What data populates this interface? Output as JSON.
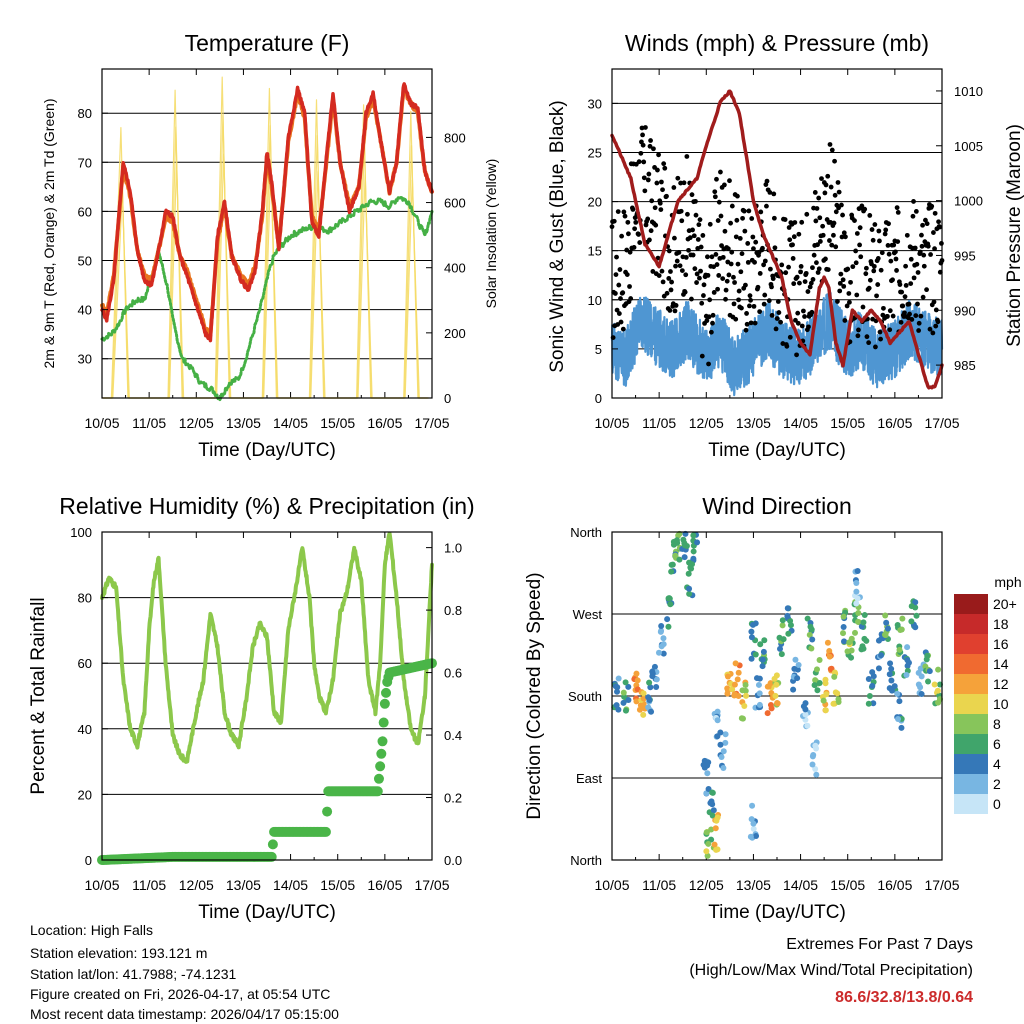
{
  "figure": {
    "location": "Location: High Falls",
    "elevation": "Station elevation: 193.121 m",
    "latlon": "Station lat/lon: 41.7988; -74.1231",
    "created": "Figure created on Fri, 2026-04-17, at 05:54 UTC",
    "recent": "Most recent data timestamp: 2026/04/17 05:15:00",
    "extremes_title": "Extremes For Past 7 Days",
    "extremes_sub": "(High/Low/Max Wind/Total Precipitation)",
    "extremes_values": "86.6/32.8/13.8/0.64"
  },
  "colors": {
    "temp2m": "#d42a20",
    "temp9m": "#e8731e",
    "dewpoint": "#45b045",
    "solar": "#f5dc68",
    "gust": "#000000",
    "wind": "#4f96d2",
    "pressure": "#a01c1c",
    "rh": "#8cc84b",
    "precip": "#4ab548"
  },
  "chart_data": [
    {
      "id": "temperature",
      "type": "line",
      "title": "Temperature (F)",
      "xlabel": "Time (Day/UTC)",
      "ylabel": "2m & 9m T (Red, Orange) & 2m Td (Green)",
      "ylabel_right": "Solar Insolation (Yellow)",
      "xlim": [
        0,
        7
      ],
      "ylim": [
        22,
        89
      ],
      "ylim_right": [
        0,
        1010
      ],
      "x_ticks": [
        "10/05",
        "11/05",
        "12/05",
        "13/05",
        "14/05",
        "15/05",
        "16/05",
        "17/05"
      ],
      "y_ticks": [
        30,
        40,
        50,
        60,
        70,
        80
      ],
      "y_ticks_right": [
        0,
        200,
        400,
        600,
        800
      ],
      "gridlines": [
        30,
        40,
        50,
        60,
        70,
        80
      ],
      "series": [
        {
          "name": "2m T",
          "x": [
            0,
            0.1,
            0.25,
            0.45,
            0.6,
            0.75,
            0.9,
            1.05,
            1.2,
            1.35,
            1.5,
            1.65,
            1.8,
            2.0,
            2.2,
            2.3,
            2.45,
            2.6,
            2.75,
            2.95,
            3.1,
            3.25,
            3.4,
            3.5,
            3.6,
            3.75,
            3.95,
            4.15,
            4.3,
            4.45,
            4.6,
            4.75,
            4.9,
            5.05,
            5.25,
            5.45,
            5.6,
            5.75,
            5.9,
            6.1,
            6.25,
            6.4,
            6.55,
            6.7,
            6.85,
            7.0
          ],
          "y": [
            40,
            38,
            46,
            70,
            64,
            52,
            46,
            45,
            52,
            60,
            59,
            51,
            47,
            41,
            35,
            34,
            55,
            62,
            51,
            46,
            44,
            48,
            60,
            72,
            66,
            52,
            75,
            85,
            80,
            58,
            55,
            70,
            84,
            70,
            60,
            65,
            80,
            84,
            75,
            64,
            70,
            86,
            82,
            81,
            68,
            64
          ]
        },
        {
          "name": "9m T",
          "x": [
            0,
            0.1,
            0.25,
            0.45,
            0.6,
            0.75,
            0.9,
            1.05,
            1.2,
            1.35,
            1.5,
            1.65,
            1.8,
            2.0,
            2.2,
            2.3,
            2.45,
            2.6,
            2.75,
            2.95,
            3.1,
            3.25,
            3.4,
            3.5,
            3.6,
            3.75,
            3.95,
            4.15,
            4.3,
            4.45,
            4.6,
            4.75,
            4.9,
            5.05,
            5.25,
            5.45,
            5.6,
            5.75,
            5.9,
            6.1,
            6.25,
            6.4,
            6.55,
            6.7,
            6.85,
            7.0
          ],
          "y": [
            41,
            39,
            47,
            69,
            63,
            52,
            47,
            46,
            52,
            59,
            58,
            51,
            48,
            42,
            36,
            35,
            54,
            61,
            51,
            47,
            45,
            49,
            59,
            71,
            65,
            53,
            74,
            84,
            79,
            59,
            56,
            69,
            83,
            70,
            61,
            65,
            79,
            83,
            75,
            64,
            70,
            85,
            82,
            80,
            68,
            64
          ]
        },
        {
          "name": "2m Td",
          "x": [
            0,
            0.2,
            0.35,
            0.5,
            0.75,
            0.9,
            1.0,
            1.2,
            1.4,
            1.5,
            1.7,
            1.9,
            2.1,
            2.3,
            2.5,
            2.7,
            2.9,
            3.05,
            3.2,
            3.35,
            3.45,
            3.55,
            3.65,
            3.8,
            4.0,
            4.2,
            4.5,
            4.8,
            5.1,
            5.4,
            5.7,
            5.9,
            6.1,
            6.3,
            6.5,
            6.7,
            6.85,
            7.0
          ],
          "y": [
            34,
            35,
            37,
            40,
            42,
            42,
            45,
            52,
            44,
            38,
            30,
            28,
            25,
            24,
            22,
            25,
            26,
            30,
            35,
            40,
            44,
            48,
            51,
            53,
            55,
            56,
            57,
            56,
            58,
            60,
            62,
            62,
            61,
            63,
            62,
            58,
            55,
            60
          ]
        },
        {
          "name": "Solar Insolation",
          "axis": "right",
          "x": [
            0.0,
            0.2,
            0.4,
            0.55,
            0.7,
            0.9,
            1.2,
            1.4,
            1.55,
            1.7,
            1.9,
            2.2,
            2.4,
            2.55,
            2.7,
            2.9,
            3.2,
            3.4,
            3.55,
            3.7,
            3.9,
            4.2,
            4.4,
            4.55,
            4.7,
            4.9,
            5.2,
            5.4,
            5.55,
            5.7,
            5.9,
            6.2,
            6.4,
            6.55,
            6.7,
            6.9
          ],
          "y": [
            0,
            0,
            830,
            0,
            0,
            0,
            0,
            0,
            945,
            0,
            0,
            0,
            0,
            985,
            0,
            0,
            0,
            0,
            950,
            0,
            0,
            0,
            0,
            915,
            0,
            0,
            0,
            0,
            900,
            0,
            0,
            0,
            0,
            880,
            0,
            0
          ]
        }
      ]
    },
    {
      "id": "winds",
      "type": "line",
      "title": "Winds (mph) & Pressure (mb)",
      "xlabel": "Time (Day/UTC)",
      "ylabel": "Sonic Wind & Gust (Blue, Black)",
      "ylabel_right": "Station Pressure (Maroon)",
      "xlim": [
        0,
        7
      ],
      "ylim": [
        0,
        33.5
      ],
      "ylim_right": [
        982,
        1012
      ],
      "x_ticks": [
        "10/05",
        "11/05",
        "12/05",
        "13/05",
        "14/05",
        "15/05",
        "16/05",
        "17/05"
      ],
      "y_ticks": [
        0,
        5,
        10,
        15,
        20,
        25,
        30
      ],
      "y_ticks_right": [
        985,
        990,
        995,
        1000,
        1005,
        1010
      ],
      "gridlines": [
        5,
        10,
        15,
        20,
        25,
        30
      ],
      "series": [
        {
          "name": "Sonic Wind",
          "x": [
            0,
            0.3,
            0.6,
            1.0,
            1.3,
            1.6,
            2.0,
            2.3,
            2.6,
            3.0,
            3.3,
            3.6,
            4.0,
            4.3,
            4.6,
            5.0,
            5.3,
            5.6,
            6.0,
            6.3,
            6.6,
            7.0
          ],
          "y": [
            5,
            4,
            8,
            6,
            5,
            7,
            4,
            6,
            3,
            5,
            7,
            5,
            4,
            6,
            8,
            5,
            6,
            4,
            5,
            7,
            6,
            5
          ]
        },
        {
          "name": "Gust",
          "x": [
            0,
            0.3,
            0.6,
            1.0,
            1.3,
            1.6,
            2.0,
            2.3,
            2.6,
            3.0,
            3.3,
            3.6,
            4.0,
            4.3,
            4.6,
            5.0,
            5.3,
            5.6,
            6.0,
            6.3,
            6.6,
            7.0
          ],
          "y": [
            12,
            14,
            22,
            18,
            15,
            18,
            9,
            18,
            14,
            13,
            17,
            12,
            11,
            16,
            20,
            12,
            13,
            11,
            12,
            15,
            13,
            14
          ]
        },
        {
          "name": "Station Pressure",
          "axis": "right",
          "x": [
            0,
            0.2,
            0.4,
            0.55,
            0.7,
            0.85,
            1.0,
            1.2,
            1.4,
            1.6,
            1.8,
            2.0,
            2.15,
            2.3,
            2.5,
            2.7,
            2.85,
            3.0,
            3.2,
            3.4,
            3.6,
            3.8,
            4.0,
            4.2,
            4.4,
            4.5,
            4.6,
            4.75,
            4.9,
            5.1,
            5.3,
            5.5,
            5.7,
            5.9,
            6.1,
            6.3,
            6.5,
            6.7,
            6.85,
            7.0
          ],
          "y": [
            1006,
            1004,
            1002,
            999,
            996,
            995,
            994,
            997,
            1000,
            1001,
            1002,
            1005,
            1007,
            1009,
            1010,
            1008,
            1004,
            1000,
            997,
            995,
            993,
            989,
            987,
            986,
            992,
            993,
            992,
            987,
            985,
            990,
            989,
            990,
            989,
            987,
            988,
            989,
            986,
            983,
            983,
            985
          ]
        }
      ]
    },
    {
      "id": "humidity",
      "type": "line",
      "title": "Relative Humidity (%) & Precipitation (in)",
      "xlabel": "Time (Day/UTC)",
      "ylabel": "Percent & Total Rainfall",
      "xlim": [
        0,
        7
      ],
      "ylim": [
        0,
        100
      ],
      "ylim_right": [
        0,
        1.05
      ],
      "x_ticks": [
        "10/05",
        "11/05",
        "12/05",
        "13/05",
        "14/05",
        "15/05",
        "16/05",
        "17/05"
      ],
      "y_ticks": [
        0,
        20,
        40,
        60,
        80,
        100
      ],
      "y_ticks_right": [
        "0.0",
        "0.2",
        "0.4",
        "0.6",
        "0.8",
        "1.0"
      ],
      "gridlines": [
        20,
        40,
        60,
        80
      ],
      "series": [
        {
          "name": "Relative Humidity",
          "x": [
            0,
            0.15,
            0.3,
            0.45,
            0.6,
            0.75,
            0.9,
            1.0,
            1.1,
            1.2,
            1.35,
            1.5,
            1.65,
            1.8,
            2.0,
            2.15,
            2.3,
            2.45,
            2.6,
            2.75,
            2.9,
            3.05,
            3.2,
            3.35,
            3.5,
            3.65,
            3.8,
            3.95,
            4.1,
            4.25,
            4.4,
            4.5,
            4.6,
            4.75,
            4.9,
            5.05,
            5.2,
            5.35,
            5.5,
            5.65,
            5.8,
            5.9,
            6.0,
            6.1,
            6.25,
            6.4,
            6.55,
            6.7,
            6.85,
            7.0
          ],
          "y": [
            80,
            86,
            83,
            55,
            40,
            35,
            45,
            70,
            85,
            92,
            60,
            38,
            32,
            30,
            45,
            55,
            75,
            65,
            45,
            38,
            35,
            48,
            65,
            72,
            68,
            45,
            42,
            70,
            82,
            95,
            80,
            60,
            50,
            45,
            55,
            75,
            82,
            95,
            85,
            55,
            45,
            60,
            90,
            100,
            80,
            55,
            40,
            35,
            50,
            90
          ]
        },
        {
          "name": "Total Rainfall",
          "axis": "right",
          "x": [
            0,
            1.5,
            3.6,
            3.65,
            4.75,
            4.8,
            5.85,
            5.9,
            5.95,
            6.0,
            6.05,
            6.1,
            7.0
          ],
          "y": [
            0,
            0.01,
            0.01,
            0.09,
            0.09,
            0.22,
            0.22,
            0.3,
            0.38,
            0.5,
            0.57,
            0.6,
            0.63
          ]
        }
      ]
    },
    {
      "id": "direction",
      "type": "scatter",
      "title": "Wind Direction",
      "xlabel": "Time (Day/UTC)",
      "ylabel": "Direction (Colored By Speed)",
      "xlim": [
        0,
        7
      ],
      "ylim": [
        0,
        360
      ],
      "x_ticks": [
        "10/05",
        "11/05",
        "12/05",
        "13/05",
        "14/05",
        "15/05",
        "16/05",
        "17/05"
      ],
      "y_ticks": [
        "North",
        "East",
        "South",
        "West",
        "North"
      ],
      "gridlines": [
        90,
        180,
        270
      ],
      "colorbar_title": "mph",
      "colorbar_labels": [
        "20+",
        "18",
        "16",
        "14",
        "12",
        "10",
        "8",
        "6",
        "4",
        "2",
        "0"
      ],
      "colorbar_colors": [
        "#991b1b",
        "#c62a2a",
        "#e0402f",
        "#f06a30",
        "#f5a23a",
        "#ead54e",
        "#87c55b",
        "#40a56b",
        "#3578b8",
        "#78b6e2",
        "#c6e5f7"
      ],
      "x": [
        0.1,
        0.3,
        0.5,
        0.65,
        0.8,
        0.9,
        1.05,
        1.2,
        1.3,
        1.4,
        1.55,
        1.75,
        2.0,
        2.1,
        2.2,
        2.35,
        2.5,
        2.65,
        2.8,
        3.0,
        3.1,
        3.2,
        3.35,
        3.5,
        3.6,
        3.75,
        3.9,
        4.1,
        4.2,
        4.35,
        4.5,
        4.6,
        4.75,
        4.9,
        5.05,
        5.2,
        5.35,
        5.5,
        5.7,
        5.8,
        5.95,
        6.1,
        6.25,
        6.4,
        6.55,
        6.7,
        6.9,
        6.1,
        3.0,
        4.3,
        5.2,
        1.65,
        2.05,
        2.2
      ],
      "y": [
        180,
        175,
        185,
        170,
        180,
        200,
        240,
        270,
        330,
        345,
        350,
        340,
        90,
        60,
        150,
        120,
        185,
        200,
        175,
        240,
        180,
        230,
        175,
        190,
        245,
        260,
        200,
        165,
        250,
        200,
        180,
        225,
        190,
        255,
        240,
        265,
        250,
        190,
        230,
        260,
        200,
        245,
        215,
        270,
        195,
        210,
        190,
        165,
        40,
        110,
        300,
        310,
        20,
        30
      ],
      "speed": [
        4,
        6,
        13,
        11,
        4,
        3,
        3,
        5,
        6,
        7,
        5,
        4,
        3,
        4,
        2,
        3,
        11,
        13,
        10,
        5,
        3,
        6,
        12,
        10,
        6,
        5,
        4,
        2,
        6,
        7,
        10,
        13,
        9,
        6,
        8,
        7,
        5,
        4,
        4,
        6,
        5,
        7,
        4,
        5,
        3,
        6,
        8,
        4,
        2,
        1,
        2,
        5,
        8,
        10
      ]
    }
  ]
}
